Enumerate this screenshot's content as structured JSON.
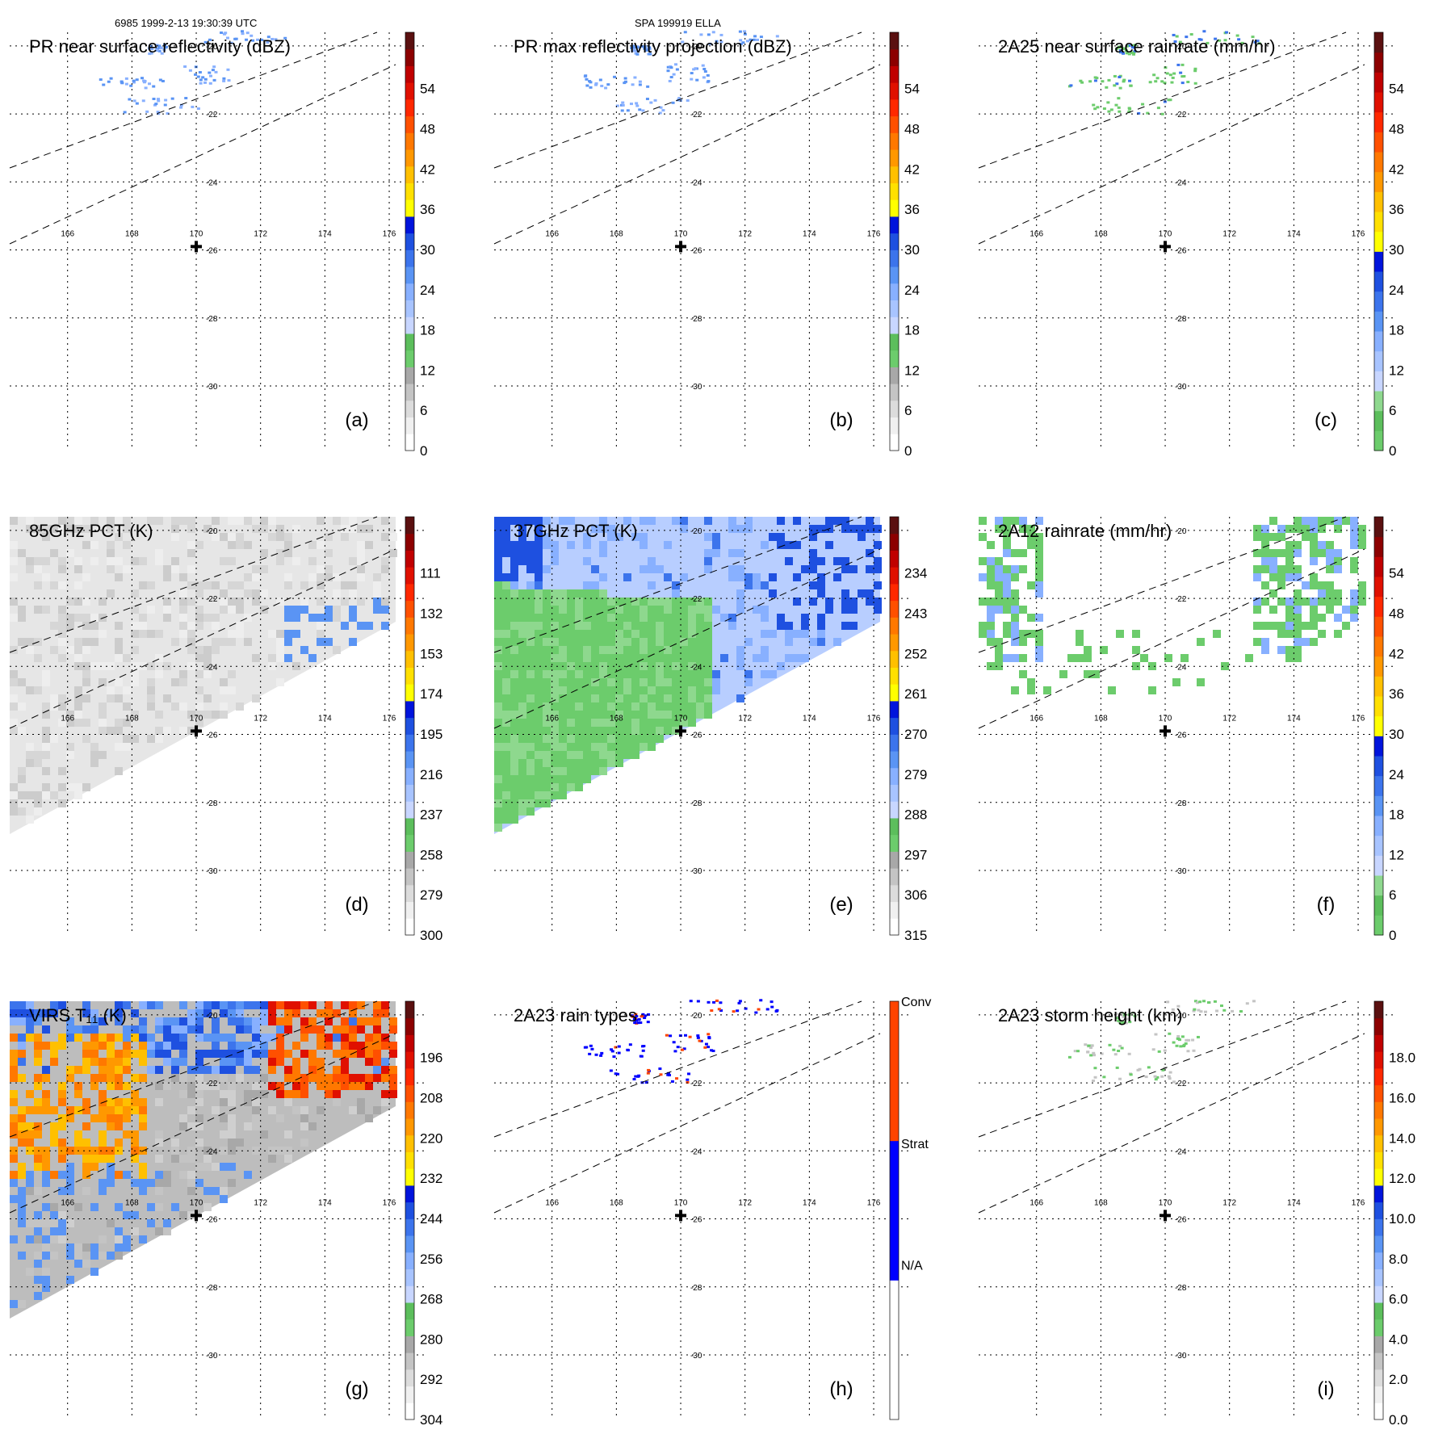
{
  "header": {
    "left": "6985 1999-2-13 19:30:39 UTC",
    "center": "SPA 199919 ELLA"
  },
  "map": {
    "lon_ticks": [
      166,
      168,
      170,
      172,
      174,
      176
    ],
    "lat_ticks": [
      -20,
      -22,
      -24,
      -26,
      -28,
      -30
    ],
    "lon_range": [
      164.2,
      176.2
    ],
    "lat_range": [
      -19.6,
      -31.9
    ],
    "storm_center": {
      "lon": 170.0,
      "lat": -25.9
    }
  },
  "chart_data": [
    {
      "id": "a",
      "type": "heatmap",
      "title": "PR near surface reflectivity (dBZ)",
      "letter": "(a)",
      "field": "pr",
      "colorbar": {
        "labels": [
          "0",
          "6",
          "12",
          "18",
          "24",
          "30",
          "36",
          "42",
          "48",
          "54"
        ],
        "palette": "refl"
      }
    },
    {
      "id": "b",
      "type": "heatmap",
      "title": "PR max reflectivity projection (dBZ)",
      "letter": "(b)",
      "field": "pr",
      "colorbar": {
        "labels": [
          "0",
          "6",
          "12",
          "18",
          "24",
          "30",
          "36",
          "42",
          "48",
          "54"
        ],
        "palette": "refl"
      }
    },
    {
      "id": "c",
      "type": "heatmap",
      "title": "2A25 near surface rainrate (mm/hr)",
      "letter": "(c)",
      "field": "pr",
      "colorbar": {
        "labels": [
          "0",
          "6",
          "12",
          "18",
          "24",
          "30",
          "36",
          "42",
          "48",
          "54"
        ],
        "palette": "rain"
      }
    },
    {
      "id": "d",
      "type": "heatmap",
      "title": "85GHz PCT (K)",
      "letter": "(d)",
      "field": "swath",
      "colorbar": {
        "labels": [
          "300",
          "279",
          "258",
          "237",
          "216",
          "195",
          "174",
          "153",
          "132",
          "111"
        ],
        "palette": "refl"
      }
    },
    {
      "id": "e",
      "type": "heatmap",
      "title": "37GHz PCT (K)",
      "letter": "(e)",
      "field": "swath",
      "colorbar": {
        "labels": [
          "315",
          "306",
          "297",
          "288",
          "279",
          "270",
          "261",
          "252",
          "243",
          "234"
        ],
        "palette": "refl"
      }
    },
    {
      "id": "f",
      "type": "heatmap",
      "title": "2A12 rainrate (mm/hr)",
      "letter": "(f)",
      "field": "swath",
      "colorbar": {
        "labels": [
          "0",
          "6",
          "12",
          "18",
          "24",
          "30",
          "36",
          "42",
          "48",
          "54"
        ],
        "palette": "rain"
      }
    },
    {
      "id": "g",
      "type": "heatmap",
      "title": "VIRS T₁₁ (K)",
      "letter": "(g)",
      "field": "swath",
      "colorbar": {
        "labels": [
          "304",
          "292",
          "280",
          "268",
          "256",
          "244",
          "232",
          "220",
          "208",
          "196"
        ],
        "palette": "refl"
      }
    },
    {
      "id": "h",
      "type": "heatmap",
      "title": "2A23 rain types",
      "letter": "(h)",
      "field": "pr",
      "colorbar": {
        "labels": [
          "N/A",
          "Strat",
          "Conv"
        ],
        "palette": "types"
      }
    },
    {
      "id": "i",
      "type": "heatmap",
      "title": "2A23 storm height (km)",
      "letter": "(i)",
      "field": "pr",
      "colorbar": {
        "labels": [
          "0.0",
          "2.0",
          "4.0",
          "6.0",
          "8.0",
          "10.0",
          "12.0",
          "14.0",
          "16.0",
          "18.0"
        ],
        "palette": "refl"
      }
    }
  ],
  "palettes": {
    "refl": [
      "#ffffff",
      "#f0f0f0",
      "#dcdcdc",
      "#c4c4c4",
      "#a8a8a8",
      "#6ccc6c",
      "#5cbe5c",
      "#c8d6ff",
      "#a8c4ff",
      "#88b0ff",
      "#5a94f4",
      "#3c74ec",
      "#1e50e0",
      "#0014dc",
      "#ffff00",
      "#ffe000",
      "#ffc000",
      "#ff9800",
      "#ff7800",
      "#ff5000",
      "#ff2800",
      "#e01000",
      "#c00000",
      "#8c0000",
      "#5a1010"
    ],
    "rain": [
      "#6ccc6c",
      "#5cbe5c",
      "#8ed88e",
      "#c8d6ff",
      "#a8c4ff",
      "#88b0ff",
      "#5a94f4",
      "#3c74ec",
      "#1e50e0",
      "#0014dc",
      "#ffff00",
      "#ffe000",
      "#ffc000",
      "#ff9800",
      "#ff7800",
      "#ff5000",
      "#ff2800",
      "#e01000",
      "#c00000",
      "#8c0000",
      "#5a1010"
    ],
    "types": [
      "#ffffff",
      "#ffffff",
      "#0000ff",
      "#0000ff",
      "#ff4400",
      "#ff4400"
    ]
  }
}
